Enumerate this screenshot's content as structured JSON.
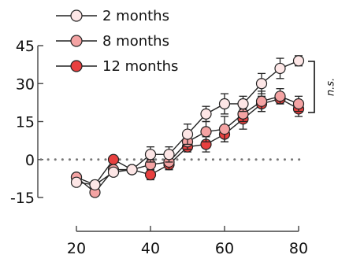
{
  "chart_data": {
    "type": "line",
    "title": "",
    "xlabel": "",
    "ylabel": "",
    "xlim": [
      20,
      80
    ],
    "ylim": [
      -15,
      45
    ],
    "xticks": [
      20,
      40,
      60,
      80
    ],
    "yticks": [
      45,
      30,
      15,
      0,
      -15
    ],
    "x": [
      20,
      25,
      30,
      35,
      40,
      45,
      50,
      55,
      60,
      65,
      70,
      75,
      80
    ],
    "zero_line": 0,
    "legend_position": "top-left",
    "series": [
      {
        "name": "2 months",
        "color": "#fde6e6",
        "values": [
          -9,
          -10,
          -5,
          -4,
          2,
          2,
          10,
          18,
          22,
          22,
          30,
          36,
          39
        ],
        "errors": [
          0,
          0,
          1,
          1,
          3,
          3,
          4,
          3,
          4,
          3,
          4,
          4,
          2
        ]
      },
      {
        "name": "8 months",
        "color": "#f4a3a3",
        "values": [
          -7,
          -13,
          -4,
          -4,
          -2,
          -1,
          7,
          11,
          12,
          18,
          23,
          25,
          22
        ],
        "errors": [
          0,
          1,
          1,
          1,
          2,
          3,
          3,
          4,
          5,
          3,
          4,
          3,
          3
        ]
      },
      {
        "name": "12 months",
        "color": "#e8403f",
        "values": [
          -7,
          -10,
          0,
          -4,
          -6,
          -2,
          5,
          6,
          10,
          16,
          22,
          24,
          20
        ],
        "errors": [
          0,
          0,
          0,
          1,
          2,
          2,
          2,
          3,
          3,
          4,
          3,
          2,
          3
        ]
      }
    ],
    "annotation": {
      "text": "n.s."
    }
  }
}
